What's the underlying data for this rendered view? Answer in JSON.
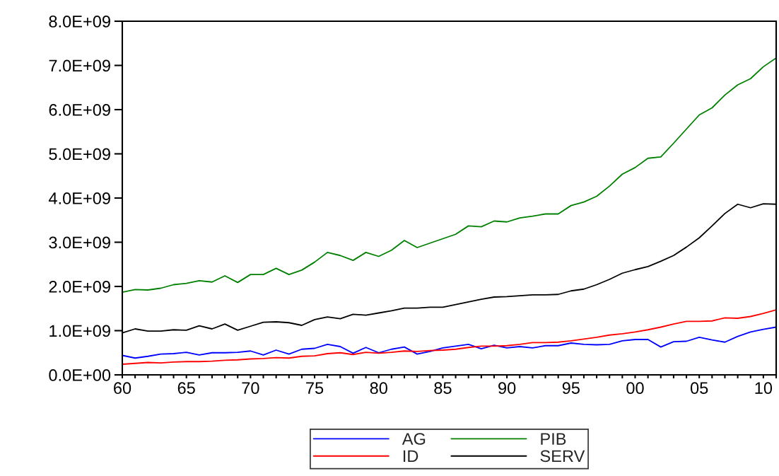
{
  "chart_data": {
    "type": "line",
    "x": [
      1960,
      1961,
      1962,
      1963,
      1964,
      1965,
      1966,
      1967,
      1968,
      1969,
      1970,
      1971,
      1972,
      1973,
      1974,
      1975,
      1976,
      1977,
      1978,
      1979,
      1980,
      1981,
      1982,
      1983,
      1984,
      1985,
      1986,
      1987,
      1988,
      1989,
      1990,
      1991,
      1992,
      1993,
      1994,
      1995,
      1996,
      1997,
      1998,
      1999,
      2000,
      2001,
      2002,
      2003,
      2004,
      2005,
      2006,
      2007,
      2008,
      2009,
      2010,
      2011
    ],
    "series": [
      {
        "name": "AG",
        "color": "#0000ff",
        "values": [
          440000000,
          380000000,
          420000000,
          470000000,
          480000000,
          510000000,
          450000000,
          500000000,
          500000000,
          510000000,
          540000000,
          450000000,
          560000000,
          470000000,
          580000000,
          600000000,
          690000000,
          640000000,
          490000000,
          620000000,
          500000000,
          580000000,
          630000000,
          470000000,
          530000000,
          610000000,
          650000000,
          690000000,
          590000000,
          670000000,
          610000000,
          640000000,
          610000000,
          660000000,
          660000000,
          720000000,
          690000000,
          680000000,
          690000000,
          770000000,
          800000000,
          800000000,
          630000000,
          750000000,
          760000000,
          850000000,
          790000000,
          740000000,
          870000000,
          970000000,
          1030000000,
          1080000000
        ]
      },
      {
        "name": "ID",
        "color": "#ff0000",
        "values": [
          240000000,
          260000000,
          280000000,
          270000000,
          290000000,
          300000000,
          300000000,
          310000000,
          330000000,
          340000000,
          360000000,
          370000000,
          390000000,
          380000000,
          420000000,
          430000000,
          480000000,
          500000000,
          460000000,
          510000000,
          490000000,
          510000000,
          540000000,
          530000000,
          550000000,
          560000000,
          580000000,
          620000000,
          650000000,
          650000000,
          660000000,
          690000000,
          730000000,
          730000000,
          740000000,
          770000000,
          810000000,
          850000000,
          900000000,
          930000000,
          970000000,
          1020000000,
          1080000000,
          1150000000,
          1210000000,
          1210000000,
          1220000000,
          1290000000,
          1280000000,
          1320000000,
          1390000000,
          1470000000
        ]
      },
      {
        "name": "PIB",
        "color": "#008000",
        "values": [
          1870000000,
          1930000000,
          1920000000,
          1960000000,
          2040000000,
          2070000000,
          2130000000,
          2100000000,
          2240000000,
          2090000000,
          2270000000,
          2270000000,
          2410000000,
          2270000000,
          2370000000,
          2550000000,
          2770000000,
          2700000000,
          2590000000,
          2770000000,
          2680000000,
          2820000000,
          3040000000,
          2880000000,
          2980000000,
          3080000000,
          3180000000,
          3370000000,
          3350000000,
          3480000000,
          3460000000,
          3550000000,
          3590000000,
          3640000000,
          3640000000,
          3830000000,
          3910000000,
          4040000000,
          4270000000,
          4540000000,
          4690000000,
          4900000000,
          4930000000,
          5240000000,
          5560000000,
          5880000000,
          6040000000,
          6330000000,
          6560000000,
          6700000000,
          6970000000,
          7170000000
        ]
      },
      {
        "name": "SERV",
        "color": "#000000",
        "values": [
          950000000,
          1040000000,
          990000000,
          990000000,
          1020000000,
          1010000000,
          1110000000,
          1040000000,
          1150000000,
          1010000000,
          1100000000,
          1190000000,
          1200000000,
          1180000000,
          1120000000,
          1250000000,
          1310000000,
          1270000000,
          1370000000,
          1350000000,
          1400000000,
          1450000000,
          1510000000,
          1510000000,
          1530000000,
          1530000000,
          1590000000,
          1650000000,
          1710000000,
          1760000000,
          1770000000,
          1790000000,
          1810000000,
          1810000000,
          1820000000,
          1900000000,
          1940000000,
          2040000000,
          2160000000,
          2300000000,
          2380000000,
          2450000000,
          2570000000,
          2700000000,
          2890000000,
          3100000000,
          3370000000,
          3650000000,
          3860000000,
          3780000000,
          3870000000,
          3860000000
        ]
      }
    ],
    "xlim": [
      1960,
      2011
    ],
    "xticks": [
      {
        "value": 1960,
        "label": "60"
      },
      {
        "value": 1961,
        "label": null
      },
      {
        "value": 1962,
        "label": null
      },
      {
        "value": 1963,
        "label": null
      },
      {
        "value": 1964,
        "label": null
      },
      {
        "value": 1965,
        "label": "65"
      },
      {
        "value": 1966,
        "label": null
      },
      {
        "value": 1967,
        "label": null
      },
      {
        "value": 1968,
        "label": null
      },
      {
        "value": 1969,
        "label": null
      },
      {
        "value": 1970,
        "label": "70"
      },
      {
        "value": 1971,
        "label": null
      },
      {
        "value": 1972,
        "label": null
      },
      {
        "value": 1973,
        "label": null
      },
      {
        "value": 1974,
        "label": null
      },
      {
        "value": 1975,
        "label": "75"
      },
      {
        "value": 1976,
        "label": null
      },
      {
        "value": 1977,
        "label": null
      },
      {
        "value": 1978,
        "label": null
      },
      {
        "value": 1979,
        "label": null
      },
      {
        "value": 1980,
        "label": "80"
      },
      {
        "value": 1981,
        "label": null
      },
      {
        "value": 1982,
        "label": null
      },
      {
        "value": 1983,
        "label": null
      },
      {
        "value": 1984,
        "label": null
      },
      {
        "value": 1985,
        "label": "85"
      },
      {
        "value": 1986,
        "label": null
      },
      {
        "value": 1987,
        "label": null
      },
      {
        "value": 1988,
        "label": null
      },
      {
        "value": 1989,
        "label": null
      },
      {
        "value": 1990,
        "label": "90"
      },
      {
        "value": 1991,
        "label": null
      },
      {
        "value": 1992,
        "label": null
      },
      {
        "value": 1993,
        "label": null
      },
      {
        "value": 1994,
        "label": null
      },
      {
        "value": 1995,
        "label": "95"
      },
      {
        "value": 1996,
        "label": null
      },
      {
        "value": 1997,
        "label": null
      },
      {
        "value": 1998,
        "label": null
      },
      {
        "value": 1999,
        "label": null
      },
      {
        "value": 2000,
        "label": "00"
      },
      {
        "value": 2001,
        "label": null
      },
      {
        "value": 2002,
        "label": null
      },
      {
        "value": 2003,
        "label": null
      },
      {
        "value": 2004,
        "label": null
      },
      {
        "value": 2005,
        "label": "05"
      },
      {
        "value": 2006,
        "label": null
      },
      {
        "value": 2007,
        "label": null
      },
      {
        "value": 2008,
        "label": null
      },
      {
        "value": 2009,
        "label": null
      },
      {
        "value": 2010,
        "label": "10"
      },
      {
        "value": 2011,
        "label": null
      }
    ],
    "ylim": [
      0,
      8000000000
    ],
    "yticks": [
      {
        "value": 0,
        "label": "0.0E+00"
      },
      {
        "value": 1000000000,
        "label": "1.0E+09"
      },
      {
        "value": 2000000000,
        "label": "2.0E+09"
      },
      {
        "value": 3000000000,
        "label": "3.0E+09"
      },
      {
        "value": 4000000000,
        "label": "4.0E+09"
      },
      {
        "value": 5000000000,
        "label": "5.0E+09"
      },
      {
        "value": 6000000000,
        "label": "6.0E+09"
      },
      {
        "value": 7000000000,
        "label": "7.0E+09"
      },
      {
        "value": 8000000000,
        "label": "8.0E+09"
      }
    ],
    "grid": false,
    "legend": "bottom",
    "line_style": "solid",
    "marker": "none"
  }
}
